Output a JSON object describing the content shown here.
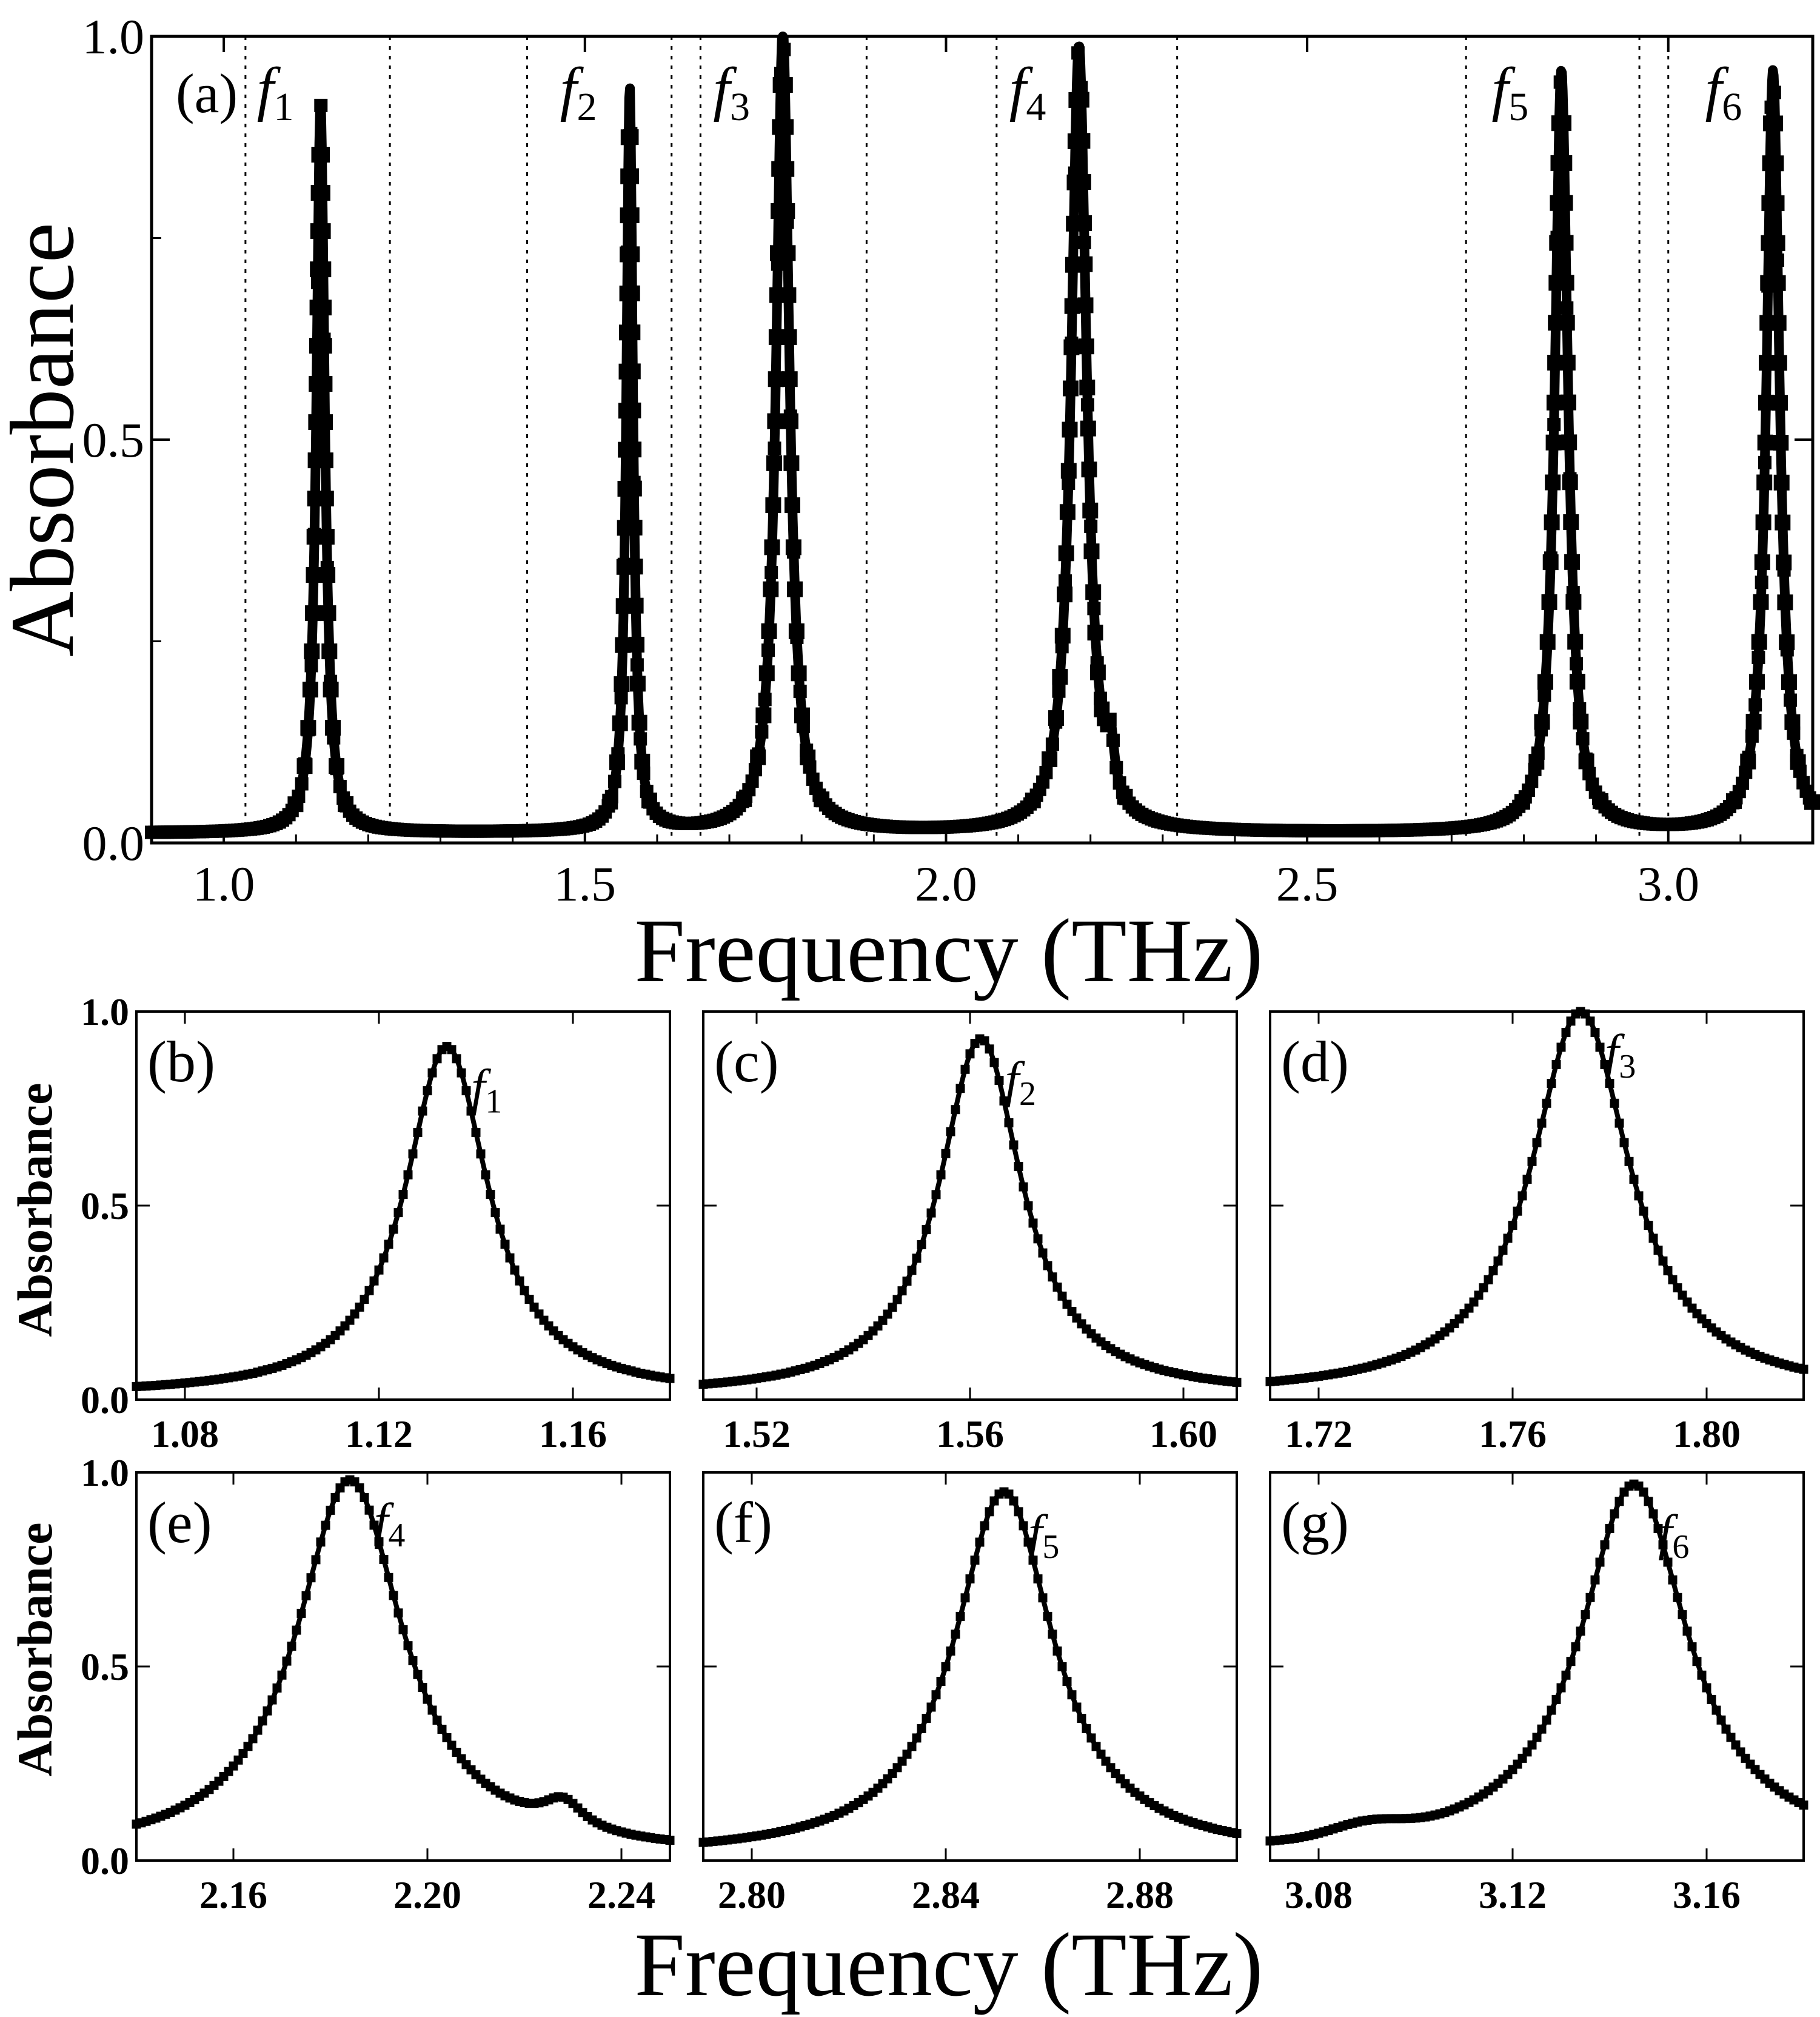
{
  "chart_data": [
    {
      "id": "a",
      "type": "line",
      "panel_label": "(a)",
      "xlabel": "Frequency (THz)",
      "ylabel": "Absorbance",
      "xlim": [
        0.9,
        3.2
      ],
      "ylim": [
        0.0,
        1.0
      ],
      "xticks": [
        1.0,
        1.5,
        2.0,
        2.5,
        3.0
      ],
      "xtick_labels": [
        "1.0",
        "1.5",
        "2.0",
        "2.5",
        "3.0"
      ],
      "yticks": [
        0.0,
        0.5,
        1.0
      ],
      "ytick_labels": [
        "0.0",
        "0.5",
        "1.0"
      ],
      "marker": "square",
      "peaks": [
        {
          "label": "f",
          "sub": "1",
          "freq": 1.134,
          "amp": 0.91
        },
        {
          "label": "f",
          "sub": "2",
          "freq": 1.562,
          "amp": 0.93
        },
        {
          "label": "f",
          "sub": "3",
          "freq": 1.774,
          "amp": 1.0
        },
        {
          "label": "f",
          "sub": "4",
          "freq": 2.184,
          "amp": 0.98
        },
        {
          "label": "f",
          "sub": "5",
          "freq": 2.852,
          "amp": 0.95
        },
        {
          "label": "f",
          "sub": "6",
          "freq": 3.145,
          "amp": 0.95
        }
      ],
      "zoom_windows": [
        [
          1.03,
          1.23
        ],
        [
          1.42,
          1.62
        ],
        [
          1.66,
          1.89
        ],
        [
          2.07,
          2.32
        ],
        [
          2.72,
          2.96
        ],
        [
          3.0,
          3.2
        ]
      ]
    },
    {
      "id": "b",
      "type": "line",
      "panel_label": "(b)",
      "ylabel": "Absorbance",
      "peak_label": "f",
      "peak_sub": "1",
      "xlim": [
        1.07,
        1.18
      ],
      "ylim": [
        0.0,
        1.0
      ],
      "xticks": [
        1.08,
        1.12,
        1.16
      ],
      "xtick_labels": [
        "1.08",
        "1.12",
        "1.16"
      ],
      "yticks": [
        0.0,
        0.5,
        1.0
      ],
      "ytick_labels": [
        "0.0",
        "0.5",
        "1.0"
      ],
      "peak_freq": 1.134,
      "peak_amp": 0.91
    },
    {
      "id": "c",
      "type": "line",
      "panel_label": "(c)",
      "peak_label": "f",
      "peak_sub": "2",
      "xlim": [
        1.51,
        1.61
      ],
      "ylim": [
        0.0,
        1.0
      ],
      "xticks": [
        1.52,
        1.56,
        1.6
      ],
      "xtick_labels": [
        "1.52",
        "1.56",
        "1.60"
      ],
      "peak_freq": 1.562,
      "peak_amp": 0.93
    },
    {
      "id": "d",
      "type": "line",
      "panel_label": "(d)",
      "peak_label": "f",
      "peak_sub": "3",
      "xlim": [
        1.71,
        1.82
      ],
      "ylim": [
        0.0,
        1.0
      ],
      "xticks": [
        1.72,
        1.76,
        1.8
      ],
      "xtick_labels": [
        "1.72",
        "1.76",
        "1.80"
      ],
      "peak_freq": 1.774,
      "peak_amp": 1.0
    },
    {
      "id": "e",
      "type": "line",
      "panel_label": "(e)",
      "ylabel": "Absorbance",
      "peak_label": "f",
      "peak_sub": "4",
      "xlim": [
        2.14,
        2.25
      ],
      "ylim": [
        0.0,
        1.0
      ],
      "xticks": [
        2.16,
        2.2,
        2.24
      ],
      "xtick_labels": [
        "2.16",
        "2.20",
        "2.24"
      ],
      "yticks": [
        0.0,
        0.5,
        1.0
      ],
      "ytick_labels": [
        "0.0",
        "0.5",
        "1.0"
      ],
      "peak_freq": 2.184,
      "peak_amp": 0.98,
      "shoulder": {
        "freq": 2.228,
        "amp": 0.18
      }
    },
    {
      "id": "f",
      "type": "line",
      "panel_label": "(f)",
      "peak_label": "f",
      "peak_sub": "5",
      "xlim": [
        2.79,
        2.9
      ],
      "ylim": [
        0.0,
        1.0
      ],
      "xticks": [
        2.8,
        2.84,
        2.88
      ],
      "xtick_labels": [
        "2.80",
        "2.84",
        "2.88"
      ],
      "peak_freq": 2.852,
      "peak_amp": 0.95
    },
    {
      "id": "g",
      "type": "line",
      "panel_label": "(g)",
      "peak_label": "f",
      "peak_sub": "6",
      "xlim": [
        3.07,
        3.18
      ],
      "ylim": [
        0.0,
        1.0
      ],
      "xticks": [
        3.08,
        3.12,
        3.16
      ],
      "xtick_labels": [
        "3.08",
        "3.12",
        "3.16"
      ],
      "peak_freq": 3.145,
      "peak_amp": 0.95
    }
  ],
  "bottom_xlabel": "Frequency (THz)",
  "colors": {
    "line": "#000000",
    "background": "#ffffff"
  }
}
